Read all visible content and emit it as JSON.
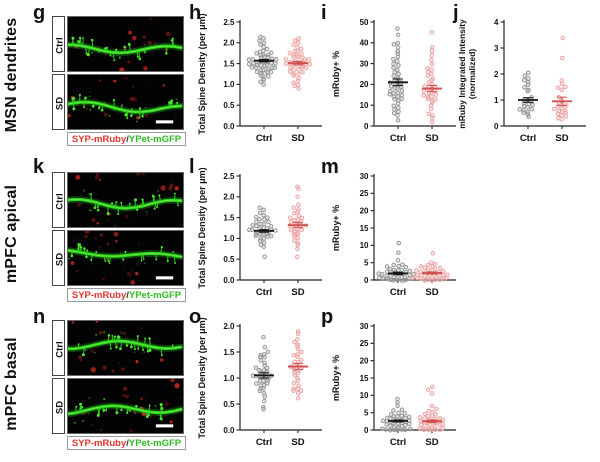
{
  "rows": [
    {
      "side_label": "MSN dendrites",
      "letter": "g",
      "conditions": [
        "Ctrl",
        "SD"
      ],
      "legend": {
        "red": "SYP-mRuby",
        "sep": "/",
        "green": "YPet-mGFP"
      }
    },
    {
      "side_label": "mPFC apical",
      "letter": "k",
      "conditions": [
        "Ctrl",
        "SD"
      ],
      "legend": {
        "red": "SYP-mRuby",
        "sep": "/",
        "green": "YPet-mGFP"
      }
    },
    {
      "side_label": "mPFC basal",
      "letter": "n",
      "conditions": [
        "Ctrl",
        "SD"
      ],
      "legend": {
        "red": "SYP-mRuby",
        "sep": "/",
        "green": "YPet-mGFP"
      }
    }
  ],
  "palette": {
    "background": "#ffffff",
    "micro_green": "#2bd41c",
    "micro_red": "#c92a1e",
    "groups": [
      {
        "label": "Ctrl",
        "marker": "#8f8f8f",
        "fill": "#cccccc",
        "mean": "#151515"
      },
      {
        "label": "SD",
        "marker": "#ec9f9f",
        "fill": "#f6caca",
        "mean": "#cf4f4f"
      }
    ]
  },
  "chart_data": [
    {
      "panel": "h",
      "region": "MSN dendrites",
      "type": "scatter",
      "ylabel": [
        "Total Spine Density (per μm)"
      ],
      "ylim": [
        0,
        2.5
      ],
      "yticks": [
        0,
        0.5,
        1,
        1.5,
        2,
        2.5
      ],
      "ydecimals": 1,
      "categories": [
        "Ctrl",
        "SD"
      ],
      "legend_position": "none",
      "grid": false,
      "groups": [
        {
          "label": "Ctrl",
          "mean": 1.57,
          "sem": 0.03,
          "values": [
            1.0,
            1.05,
            1.1,
            1.15,
            1.2,
            1.2,
            1.25,
            1.25,
            1.3,
            1.3,
            1.3,
            1.35,
            1.35,
            1.35,
            1.4,
            1.4,
            1.4,
            1.4,
            1.45,
            1.45,
            1.45,
            1.45,
            1.5,
            1.5,
            1.5,
            1.5,
            1.55,
            1.55,
            1.55,
            1.55,
            1.6,
            1.6,
            1.6,
            1.6,
            1.65,
            1.65,
            1.65,
            1.7,
            1.7,
            1.7,
            1.75,
            1.75,
            1.8,
            1.8,
            1.85,
            1.9,
            1.95,
            2.0,
            2.05,
            2.1,
            2.15
          ]
        },
        {
          "label": "SD",
          "mean": 1.51,
          "sem": 0.04,
          "values": [
            0.9,
            0.95,
            1.0,
            1.05,
            1.1,
            1.15,
            1.2,
            1.25,
            1.25,
            1.3,
            1.3,
            1.35,
            1.35,
            1.4,
            1.4,
            1.4,
            1.45,
            1.45,
            1.45,
            1.5,
            1.5,
            1.5,
            1.5,
            1.55,
            1.55,
            1.55,
            1.55,
            1.6,
            1.6,
            1.6,
            1.65,
            1.65,
            1.65,
            1.7,
            1.7,
            1.75,
            1.75,
            1.8,
            1.8,
            1.85,
            1.9,
            1.95,
            2.0,
            2.05,
            2.1
          ]
        }
      ]
    },
    {
      "panel": "i",
      "region": "MSN dendrites",
      "type": "scatter",
      "ylabel": [
        "mRuby+ %"
      ],
      "ylim": [
        0,
        50
      ],
      "yticks": [
        0,
        10,
        20,
        30,
        40,
        50
      ],
      "ydecimals": 0,
      "categories": [
        "Ctrl",
        "SD"
      ],
      "legend_position": "none",
      "grid": false,
      "groups": [
        {
          "label": "Ctrl",
          "mean": 21,
          "sem": 1.6,
          "values": [
            3,
            5,
            6,
            7,
            8,
            9,
            10,
            11,
            12,
            13,
            13,
            14,
            14,
            15,
            15,
            16,
            16,
            17,
            17,
            18,
            18,
            19,
            19,
            20,
            20,
            21,
            21,
            22,
            22,
            23,
            24,
            25,
            26,
            27,
            28,
            29,
            30,
            31,
            32,
            33,
            35,
            36,
            38,
            39,
            40,
            44,
            47
          ]
        },
        {
          "label": "SD",
          "mean": 18,
          "sem": 1.5,
          "values": [
            2,
            4,
            5,
            6,
            8,
            10,
            11,
            12,
            13,
            13,
            14,
            14,
            15,
            15,
            16,
            16,
            17,
            17,
            18,
            18,
            19,
            19,
            20,
            21,
            22,
            23,
            24,
            25,
            26,
            27,
            28,
            30,
            32,
            34,
            36,
            38,
            45
          ]
        }
      ]
    },
    {
      "panel": "j",
      "region": "MSN dendrites",
      "type": "scatter",
      "ylabel": [
        "mRuby Integrated Intensity",
        "(normalized)"
      ],
      "ylim": [
        0,
        4
      ],
      "yticks": [
        0,
        1,
        2,
        3,
        4
      ],
      "ydecimals": 0,
      "categories": [
        "Ctrl",
        "SD"
      ],
      "legend_position": "none",
      "grid": false,
      "groups": [
        {
          "label": "Ctrl",
          "mean": 1.0,
          "sem": 0.09,
          "values": [
            0.35,
            0.45,
            0.5,
            0.55,
            0.6,
            0.65,
            0.65,
            0.7,
            0.75,
            0.8,
            0.85,
            0.9,
            0.95,
            1.0,
            1.05,
            1.1,
            1.35,
            1.4,
            1.5,
            1.6,
            1.7,
            1.75,
            1.85,
            1.95,
            2.05
          ]
        },
        {
          "label": "SD",
          "mean": 0.95,
          "sem": 0.16,
          "values": [
            0.25,
            0.3,
            0.35,
            0.4,
            0.45,
            0.5,
            0.55,
            0.6,
            0.6,
            0.65,
            0.7,
            0.75,
            0.8,
            0.85,
            0.9,
            1.0,
            1.1,
            1.4,
            1.45,
            1.5,
            1.6,
            1.75,
            2.6,
            3.4
          ]
        }
      ]
    },
    {
      "panel": "l",
      "region": "mPFC apical",
      "type": "scatter",
      "ylabel": [
        "Total Spine Density (per μm)"
      ],
      "ylim": [
        0,
        2.5
      ],
      "yticks": [
        0,
        0.5,
        1,
        1.5,
        2,
        2.5
      ],
      "ydecimals": 1,
      "categories": [
        "Ctrl",
        "SD"
      ],
      "legend_position": "none",
      "grid": false,
      "groups": [
        {
          "label": "Ctrl",
          "mean": 1.18,
          "sem": 0.03,
          "values": [
            0.55,
            0.8,
            0.85,
            0.9,
            0.95,
            1.0,
            1.0,
            1.05,
            1.05,
            1.05,
            1.1,
            1.1,
            1.1,
            1.1,
            1.15,
            1.15,
            1.15,
            1.15,
            1.2,
            1.2,
            1.2,
            1.2,
            1.25,
            1.25,
            1.25,
            1.3,
            1.3,
            1.3,
            1.35,
            1.35,
            1.4,
            1.4,
            1.45,
            1.45,
            1.5,
            1.5,
            1.55,
            1.6,
            1.7,
            1.75
          ]
        },
        {
          "label": "SD",
          "mean": 1.32,
          "sem": 0.06,
          "values": [
            0.55,
            0.75,
            0.85,
            0.9,
            0.95,
            1.0,
            1.05,
            1.1,
            1.1,
            1.15,
            1.15,
            1.2,
            1.2,
            1.25,
            1.25,
            1.3,
            1.3,
            1.3,
            1.35,
            1.35,
            1.4,
            1.4,
            1.45,
            1.45,
            1.5,
            1.5,
            1.55,
            1.6,
            1.65,
            1.7,
            1.75,
            1.8,
            2.0,
            2.2,
            2.25
          ]
        }
      ]
    },
    {
      "panel": "m",
      "region": "mPFC apical",
      "type": "scatter",
      "ylabel": [
        "mRuby+ %"
      ],
      "ylim": [
        0,
        30
      ],
      "yticks": [
        0,
        5,
        10,
        15,
        20,
        25,
        30
      ],
      "ydecimals": 0,
      "categories": [
        "Ctrl",
        "SD"
      ],
      "legend_position": "none",
      "grid": false,
      "groups": [
        {
          "label": "Ctrl",
          "mean": 1.9,
          "sem": 0.35,
          "values": [
            0,
            0,
            0,
            0,
            0,
            0.2,
            0.3,
            0.4,
            0.5,
            0.6,
            0.7,
            0.8,
            0.9,
            1.0,
            1.0,
            1.2,
            1.3,
            1.5,
            1.5,
            1.7,
            1.8,
            2.0,
            2.0,
            2.2,
            2.3,
            2.5,
            2.5,
            2.8,
            3.0,
            3.0,
            3.2,
            3.5,
            3.8,
            4.0,
            4.2,
            4.5,
            5.5,
            7.8,
            10.8
          ]
        },
        {
          "label": "SD",
          "mean": 2.0,
          "sem": 0.3,
          "values": [
            0,
            0,
            0,
            0,
            0,
            0.2,
            0.3,
            0.4,
            0.5,
            0.6,
            0.7,
            0.8,
            0.9,
            1.0,
            1.1,
            1.2,
            1.4,
            1.5,
            1.6,
            1.8,
            1.9,
            2.0,
            2.1,
            2.2,
            2.4,
            2.5,
            2.6,
            2.8,
            3.0,
            3.2,
            3.4,
            3.6,
            3.8,
            4.0,
            4.3,
            4.6,
            5.0,
            7.8
          ]
        }
      ]
    },
    {
      "panel": "o",
      "region": "mPFC basal",
      "type": "scatter",
      "ylabel": [
        "Total Spine Density (per μm)"
      ],
      "ylim": [
        0,
        2.0
      ],
      "yticks": [
        0,
        0.5,
        1,
        1.5,
        2
      ],
      "ydecimals": 1,
      "categories": [
        "Ctrl",
        "SD"
      ],
      "legend_position": "none",
      "grid": false,
      "groups": [
        {
          "label": "Ctrl",
          "mean": 1.05,
          "sem": 0.05,
          "values": [
            0.4,
            0.45,
            0.55,
            0.65,
            0.7,
            0.75,
            0.8,
            0.8,
            0.85,
            0.85,
            0.9,
            0.9,
            0.95,
            0.95,
            0.95,
            1.0,
            1.0,
            1.0,
            1.05,
            1.05,
            1.05,
            1.1,
            1.1,
            1.1,
            1.15,
            1.15,
            1.2,
            1.2,
            1.25,
            1.3,
            1.35,
            1.4,
            1.4,
            1.45,
            1.45,
            1.5,
            1.6,
            1.78
          ]
        },
        {
          "label": "SD",
          "mean": 1.22,
          "sem": 0.06,
          "values": [
            0.6,
            0.7,
            0.75,
            0.75,
            0.8,
            0.8,
            0.85,
            0.9,
            0.95,
            1.0,
            1.05,
            1.1,
            1.1,
            1.15,
            1.15,
            1.2,
            1.2,
            1.25,
            1.25,
            1.3,
            1.3,
            1.35,
            1.4,
            1.45,
            1.45,
            1.5,
            1.55,
            1.6,
            1.65,
            1.7,
            1.75,
            1.85,
            1.9
          ]
        }
      ]
    },
    {
      "panel": "p",
      "region": "mPFC basal",
      "type": "scatter",
      "ylabel": [
        "mRuby+ %"
      ],
      "ylim": [
        0,
        30
      ],
      "yticks": [
        0,
        5,
        10,
        15,
        20,
        25,
        30
      ],
      "ydecimals": 0,
      "categories": [
        "Ctrl",
        "SD"
      ],
      "legend_position": "none",
      "grid": false,
      "groups": [
        {
          "label": "Ctrl",
          "mean": 2.6,
          "sem": 0.3,
          "values": [
            0,
            0,
            0,
            0,
            0,
            0,
            0.3,
            0.5,
            0.7,
            0.9,
            1.0,
            1.2,
            1.4,
            1.5,
            1.6,
            1.8,
            2.0,
            2.0,
            2.2,
            2.3,
            2.5,
            2.5,
            2.7,
            2.8,
            3.0,
            3.0,
            3.2,
            3.4,
            3.5,
            3.7,
            3.9,
            4.0,
            4.2,
            4.5,
            4.8,
            5.0,
            5.5,
            6.0,
            7.0,
            8.0,
            9.0
          ]
        },
        {
          "label": "SD",
          "mean": 2.5,
          "sem": 0.4,
          "values": [
            0,
            0,
            0,
            0,
            0,
            0.3,
            0.5,
            0.7,
            0.9,
            1.0,
            1.2,
            1.4,
            1.5,
            1.7,
            1.8,
            2.0,
            2.1,
            2.3,
            2.4,
            2.5,
            2.7,
            2.8,
            3.0,
            3.1,
            3.3,
            3.5,
            3.7,
            4.0,
            4.2,
            4.5,
            4.8,
            5.2,
            5.5,
            6.0,
            7.0,
            10.5,
            11.5,
            12.5
          ]
        }
      ]
    }
  ]
}
